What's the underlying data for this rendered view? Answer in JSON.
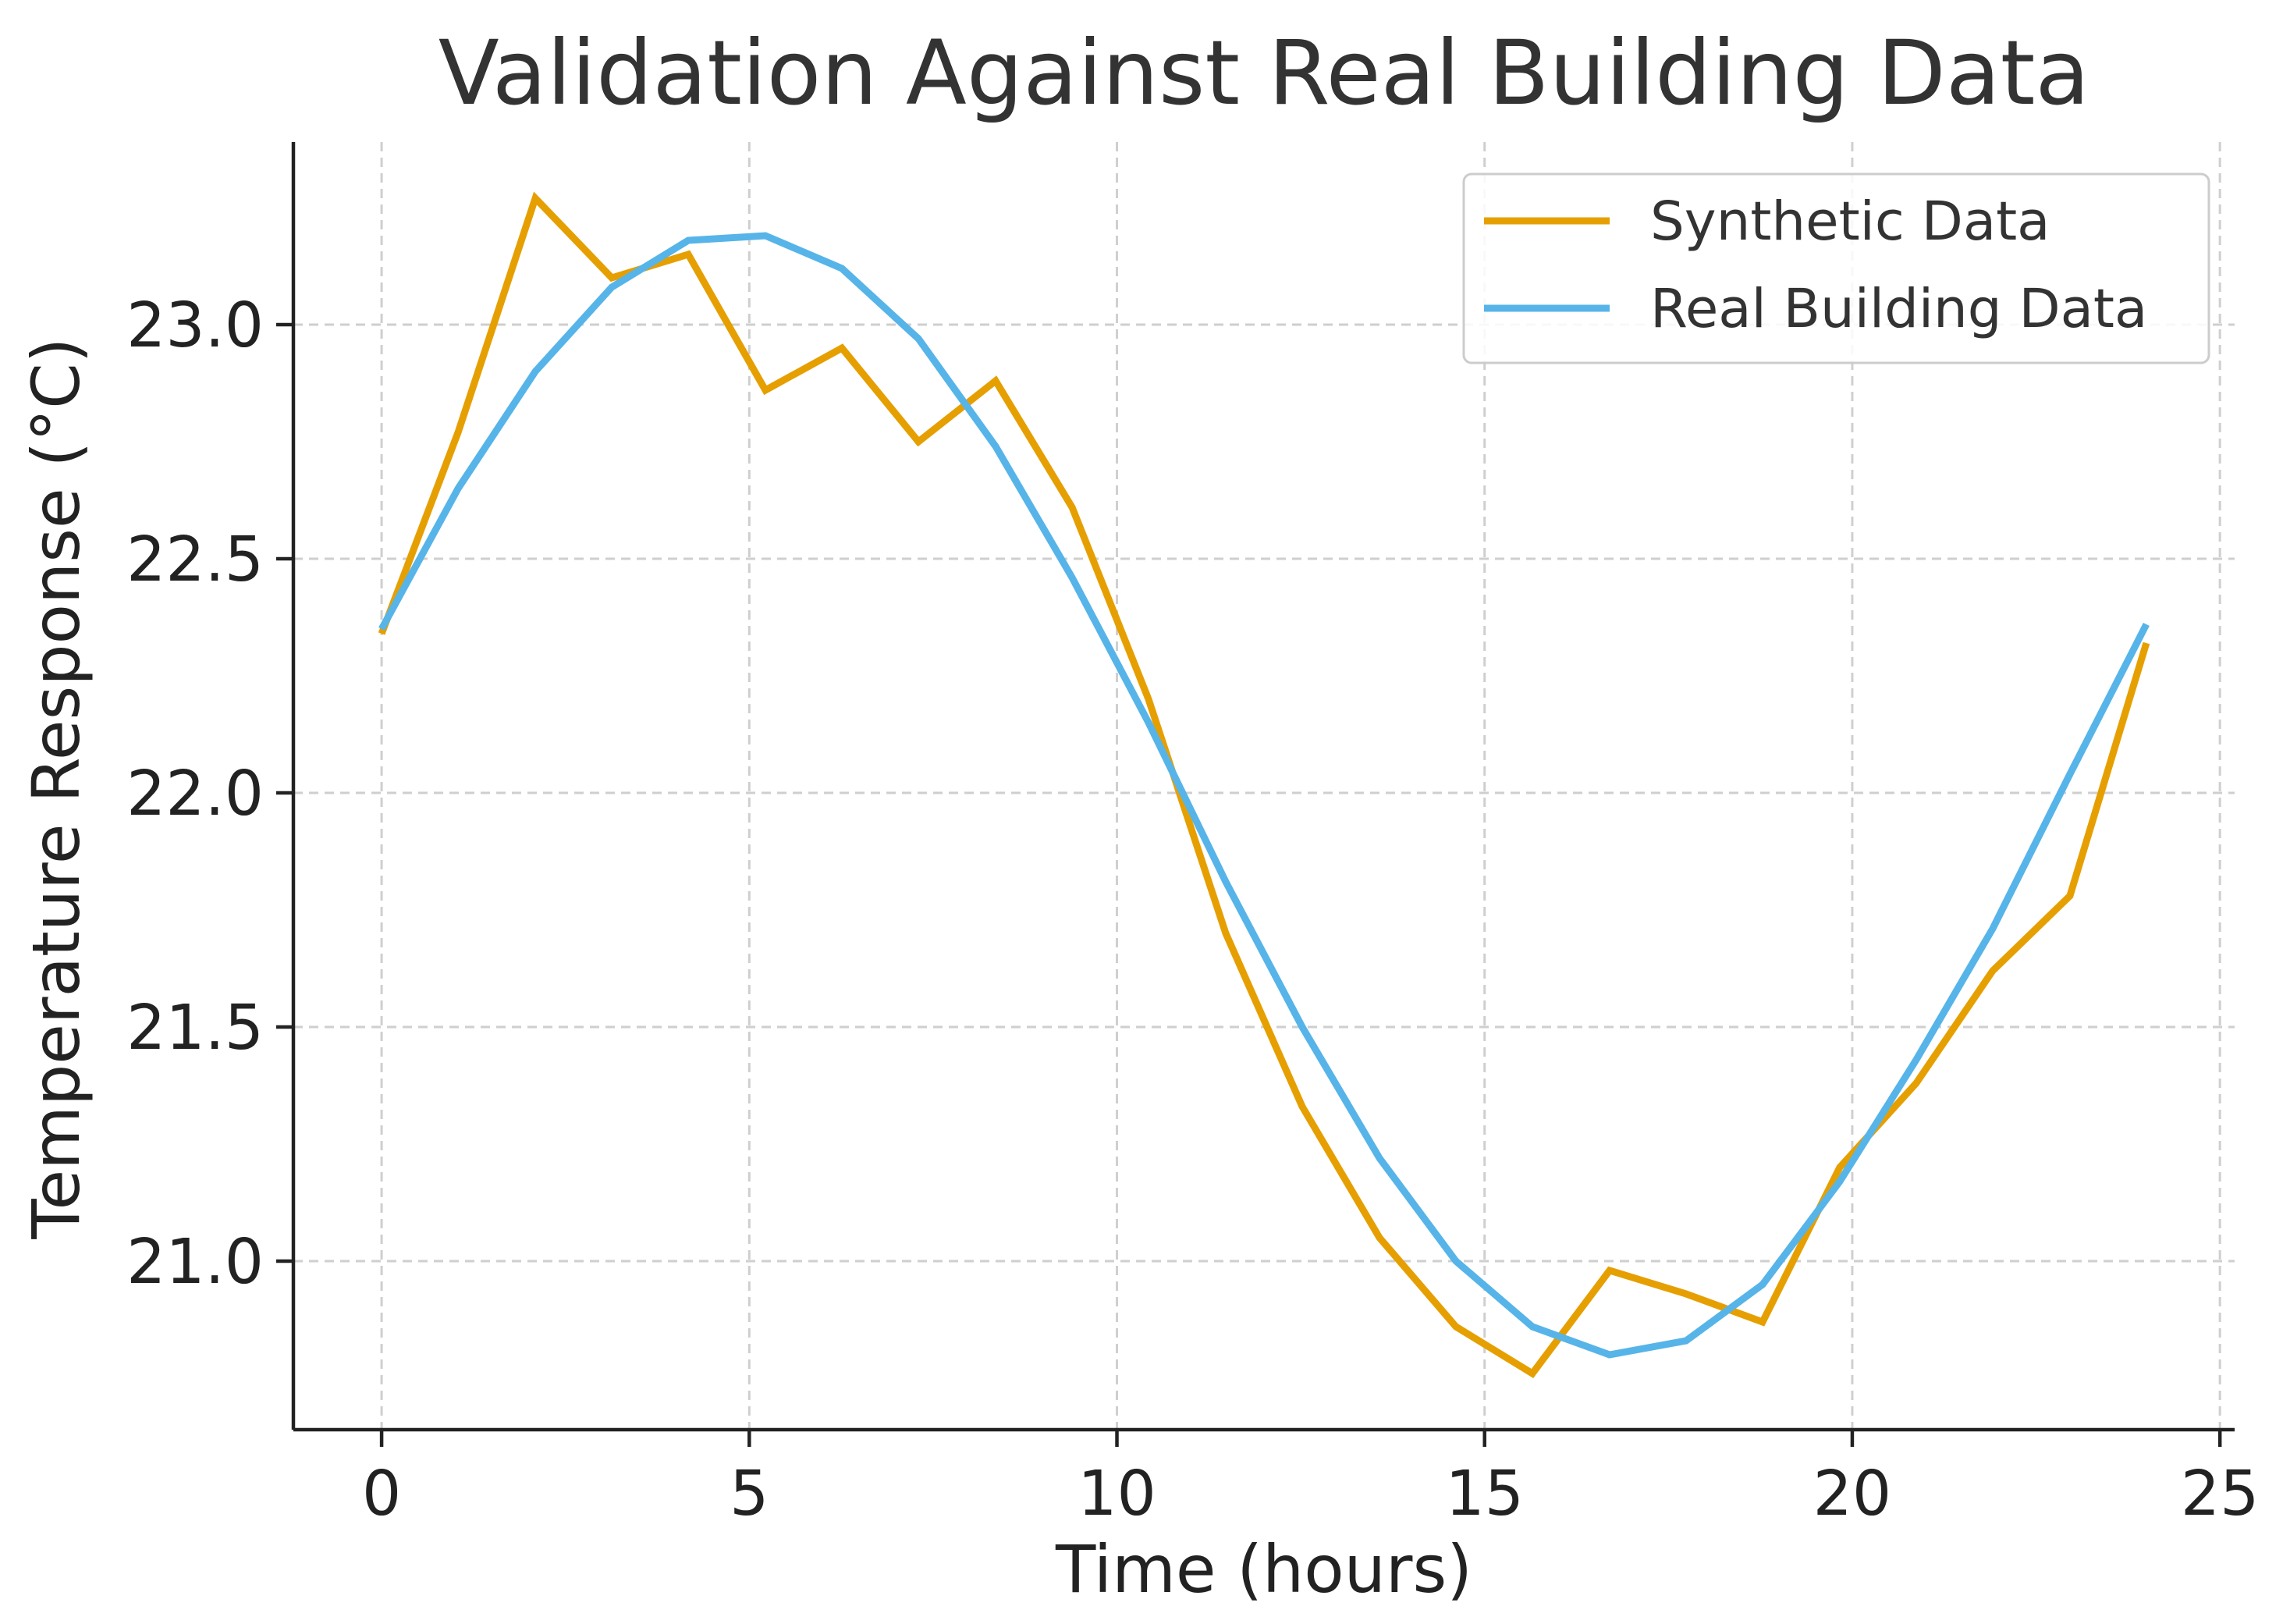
{
  "chart_data": {
    "type": "line",
    "title": "Validation Against Real Building Data",
    "xlabel": "Time (hours)",
    "ylabel": "Temperature Response (°C)",
    "xlim": [
      -1.2,
      25.2
    ],
    "ylim": [
      20.64,
      23.39
    ],
    "x_ticks": [
      0,
      5,
      10,
      15,
      20,
      25
    ],
    "x_tick_labels": [
      "0",
      "5",
      "10",
      "15",
      "20",
      "25"
    ],
    "y_ticks": [
      21.0,
      21.5,
      22.0,
      22.5,
      23.0
    ],
    "y_tick_labels": [
      "21.0",
      "21.5",
      "22.0",
      "22.5",
      "23.0"
    ],
    "grid": true,
    "legend_position": "top-right",
    "series": [
      {
        "name": "Synthetic Data",
        "color": "#E69F00",
        "x": [
          0,
          1.04,
          2.09,
          3.13,
          4.17,
          5.22,
          6.26,
          7.3,
          8.35,
          9.39,
          10.43,
          11.48,
          12.52,
          13.57,
          14.61,
          15.65,
          16.7,
          17.74,
          18.78,
          19.83,
          20.87,
          21.91,
          22.96,
          24
        ],
        "values": [
          22.34,
          22.77,
          23.27,
          23.1,
          23.15,
          22.86,
          22.95,
          22.75,
          22.88,
          22.61,
          22.2,
          21.7,
          21.33,
          21.05,
          20.86,
          20.76,
          20.98,
          20.93,
          20.87,
          21.2,
          21.38,
          21.62,
          21.78,
          22.32
        ]
      },
      {
        "name": "Real Building Data",
        "color": "#56B4E9",
        "x": [
          0,
          1.04,
          2.09,
          3.13,
          4.17,
          5.22,
          6.26,
          7.3,
          8.35,
          9.39,
          10.43,
          11.48,
          12.52,
          13.57,
          14.61,
          15.65,
          16.7,
          17.74,
          18.78,
          19.83,
          20.87,
          21.91,
          22.96,
          24
        ],
        "values": [
          22.35,
          22.65,
          22.9,
          23.08,
          23.18,
          23.19,
          23.12,
          22.97,
          22.74,
          22.46,
          22.15,
          21.81,
          21.5,
          21.22,
          21.0,
          20.86,
          20.8,
          20.83,
          20.95,
          21.17,
          21.43,
          21.71,
          22.04,
          22.36
        ]
      }
    ]
  }
}
